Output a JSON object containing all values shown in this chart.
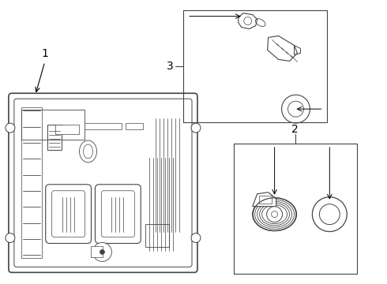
{
  "bg_color": "#ffffff",
  "line_color": "#444444",
  "fig_width": 4.9,
  "fig_height": 3.6,
  "dpi": 100
}
